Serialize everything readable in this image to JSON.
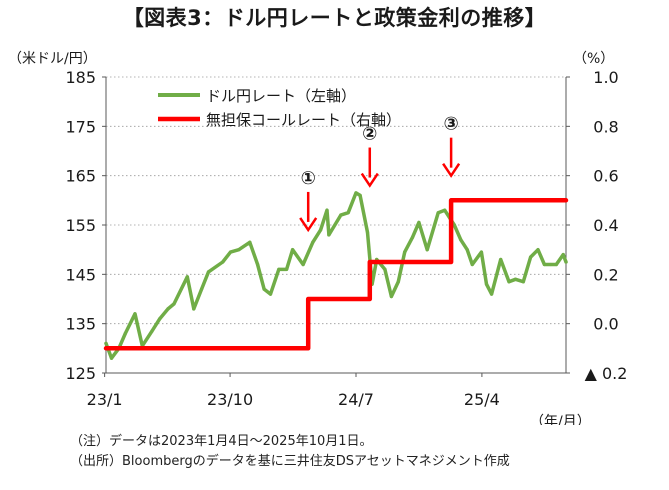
{
  "chart_data": {
    "type": "line",
    "title": "【図表3：ドル円レートと政策金利の推移】",
    "left_axis": {
      "unit_label": "（米ドル/円）",
      "range": [
        125,
        185
      ],
      "ticks": [
        125,
        135,
        145,
        155,
        165,
        175,
        185
      ],
      "tick_labels": [
        "125",
        "135",
        "145",
        "155",
        "165",
        "175",
        "185"
      ]
    },
    "right_axis": {
      "unit_label": "（%）",
      "range": [
        -0.2,
        1.0
      ],
      "ticks": [
        -0.2,
        0.0,
        0.2,
        0.4,
        0.6,
        0.8,
        1.0
      ],
      "tick_labels": [
        "▲ 0.2",
        "0.0",
        "0.2",
        "0.4",
        "0.6",
        "0.8",
        "1.0"
      ]
    },
    "x_axis": {
      "unit_label": "（年/月）",
      "ticks": [
        "2023-01",
        "2023-10",
        "2024-07",
        "2025-04"
      ],
      "tick_labels": [
        "23/1",
        "23/10",
        "24/7",
        "25/4"
      ],
      "range": [
        "2023-01-04",
        "2025-10-01"
      ]
    },
    "grid": "horizontal dotted",
    "legend_position": "top-left",
    "series": [
      {
        "name": "ドル円レート（左軸）",
        "axis": "left",
        "color": "#70ad47",
        "points": [
          [
            "2023-01-04",
            131
          ],
          [
            "2023-01-16",
            128
          ],
          [
            "2023-02-01",
            130
          ],
          [
            "2023-02-15",
            133
          ],
          [
            "2023-03-08",
            137
          ],
          [
            "2023-03-24",
            130.5
          ],
          [
            "2023-04-14",
            133.5
          ],
          [
            "2023-05-01",
            136
          ],
          [
            "2023-05-19",
            138
          ],
          [
            "2023-06-01",
            139
          ],
          [
            "2023-06-30",
            144.5
          ],
          [
            "2023-07-14",
            138
          ],
          [
            "2023-07-31",
            142
          ],
          [
            "2023-08-15",
            145.5
          ],
          [
            "2023-09-15",
            147.5
          ],
          [
            "2023-10-02",
            149.5
          ],
          [
            "2023-10-20",
            150
          ],
          [
            "2023-11-13",
            151.5
          ],
          [
            "2023-11-30",
            147
          ],
          [
            "2023-12-14",
            142
          ],
          [
            "2023-12-28",
            141
          ],
          [
            "2024-01-15",
            146
          ],
          [
            "2024-02-01",
            146
          ],
          [
            "2024-02-14",
            150
          ],
          [
            "2024-03-08",
            147
          ],
          [
            "2024-03-29",
            151.5
          ],
          [
            "2024-04-15",
            154
          ],
          [
            "2024-04-29",
            158
          ],
          [
            "2024-05-03",
            153
          ],
          [
            "2024-05-29",
            157
          ],
          [
            "2024-06-14",
            157.5
          ],
          [
            "2024-07-01",
            161.5
          ],
          [
            "2024-07-10",
            161
          ],
          [
            "2024-07-26",
            153.5
          ],
          [
            "2024-08-05",
            143
          ],
          [
            "2024-08-15",
            148
          ],
          [
            "2024-09-02",
            146
          ],
          [
            "2024-09-16",
            140.5
          ],
          [
            "2024-10-01",
            143.5
          ],
          [
            "2024-10-15",
            149.5
          ],
          [
            "2024-11-01",
            152.5
          ],
          [
            "2024-11-15",
            155.5
          ],
          [
            "2024-12-03",
            150
          ],
          [
            "2024-12-27",
            157.5
          ],
          [
            "2025-01-10",
            158
          ],
          [
            "2025-01-31",
            155
          ],
          [
            "2025-02-14",
            152
          ],
          [
            "2025-02-28",
            150
          ],
          [
            "2025-03-11",
            147
          ],
          [
            "2025-03-31",
            149.5
          ],
          [
            "2025-04-11",
            143
          ],
          [
            "2025-04-22",
            141
          ],
          [
            "2025-05-12",
            148
          ],
          [
            "2025-05-30",
            143.5
          ],
          [
            "2025-06-13",
            144
          ],
          [
            "2025-06-30",
            143.5
          ],
          [
            "2025-07-16",
            148.5
          ],
          [
            "2025-08-01",
            150
          ],
          [
            "2025-08-15",
            147
          ],
          [
            "2025-08-29",
            147
          ],
          [
            "2025-09-10",
            147
          ],
          [
            "2025-09-25",
            149
          ],
          [
            "2025-10-01",
            147.5
          ]
        ]
      },
      {
        "name": "無担保コールレート（右軸）",
        "axis": "right",
        "color": "#ff0000",
        "step": true,
        "points": [
          [
            "2023-01-04",
            -0.1
          ],
          [
            "2024-03-19",
            0.1
          ],
          [
            "2024-07-31",
            0.25
          ],
          [
            "2025-01-24",
            0.5
          ],
          [
            "2025-10-01",
            0.5
          ]
        ]
      }
    ],
    "annotations": [
      {
        "label": "①",
        "date": "2024-03-19",
        "arrow_tip_value": 154
      },
      {
        "label": "②",
        "date": "2024-07-31",
        "arrow_tip_value": 163
      },
      {
        "label": "③",
        "date": "2025-01-24",
        "arrow_tip_value": 165
      }
    ]
  },
  "notes": {
    "note1": "（注）データは2023年1月4日～2025年10月1日。",
    "note2": "（出所）Bloombergのデータを基に三井住友DSアセットマネジメント作成"
  }
}
